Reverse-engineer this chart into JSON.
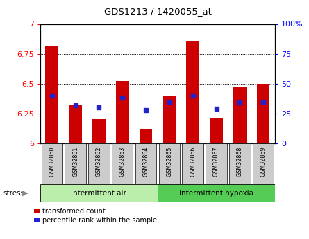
{
  "title": "GDS1213 / 1420055_at",
  "samples": [
    "GSM32860",
    "GSM32861",
    "GSM32862",
    "GSM32863",
    "GSM32864",
    "GSM32865",
    "GSM32866",
    "GSM32867",
    "GSM32868",
    "GSM32869"
  ],
  "red_values": [
    6.82,
    6.32,
    6.2,
    6.52,
    6.12,
    6.4,
    6.86,
    6.21,
    6.47,
    6.5
  ],
  "blue_values": [
    6.4,
    6.32,
    6.3,
    6.38,
    6.28,
    6.35,
    6.4,
    6.29,
    6.34,
    6.35
  ],
  "ylim_left": [
    6.0,
    7.0
  ],
  "ylim_right": [
    0,
    100
  ],
  "yticks_left": [
    6.0,
    6.25,
    6.5,
    6.75,
    7.0
  ],
  "yticks_right": [
    0,
    25,
    50,
    75,
    100
  ],
  "ytick_labels_left": [
    "6",
    "6.25",
    "6.5",
    "6.75",
    "7"
  ],
  "ytick_labels_right": [
    "0",
    "25",
    "50",
    "75",
    "100%"
  ],
  "group1_label": "intermittent air",
  "group2_label": "intermittent hypoxia",
  "group1_indices": [
    0,
    1,
    2,
    3,
    4
  ],
  "group2_indices": [
    5,
    6,
    7,
    8,
    9
  ],
  "stress_label": "stress",
  "legend1": "transformed count",
  "legend2": "percentile rank within the sample",
  "bar_color": "#cc0000",
  "dot_color": "#2222cc",
  "group1_color": "#bbeeaa",
  "group2_color": "#55cc55",
  "tick_bg_color": "#cccccc",
  "bar_base": 6.0,
  "gridline_color": "#555555",
  "gridlines": [
    6.25,
    6.5,
    6.75
  ]
}
